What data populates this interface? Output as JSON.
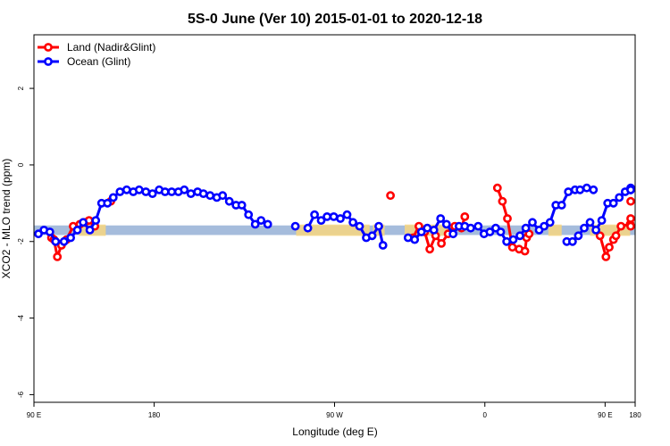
{
  "chart_data": {
    "type": "line",
    "title": "5S-0 June (Ver 10)   2015-01-01 to 2020-12-18",
    "xlabel": "Longitude (deg E)",
    "ylabel": "XCO2 - MLO trend (ppm)",
    "xlim": [
      90,
      450
    ],
    "ylim": [
      -6.2,
      3.4
    ],
    "xticks": [
      {
        "value": 90,
        "label": "90 E"
      },
      {
        "value": 162,
        "label": "180"
      },
      {
        "value": 270,
        "label": "90 W"
      },
      {
        "value": 360,
        "label": "0"
      },
      {
        "value": 432,
        "label": "90 E"
      },
      {
        "value": 450,
        "label": "180"
      }
    ],
    "yticks": [
      -6,
      -4,
      -2,
      0,
      2
    ],
    "colors": {
      "land": "#ff0000",
      "ocean": "#0000ff",
      "band_blue": "#a5bcdc",
      "band_orange": "#f7d680"
    },
    "bands": {
      "blue": {
        "y_low": -1.83,
        "y_high": -1.58
      },
      "orange": [
        {
          "x_start": 117,
          "x_end": 133
        },
        {
          "x_start": 247,
          "x_end": 291
        },
        {
          "x_start": 293,
          "x_end": 300
        },
        {
          "x_start": 312,
          "x_end": 342
        },
        {
          "x_start": 398,
          "x_end": 406
        },
        {
          "x_start": 423,
          "x_end": 447
        }
      ]
    },
    "legend": {
      "position": "top-left"
    },
    "series": [
      {
        "name": "Land (Nadir&Glint)",
        "color_key": "land",
        "segments": [
          [
            [
              100.5,
              -1.9
            ],
            [
              102,
              -1.95
            ],
            [
              104,
              -2.4
            ],
            [
              106.5,
              -2.1
            ],
            [
              109.5,
              -1.95
            ],
            [
              113.5,
              -1.6
            ],
            [
              117.5,
              -1.55
            ],
            [
              120.5,
              -1.5
            ],
            [
              123,
              -1.45
            ],
            [
              126.5,
              -1.6
            ]
          ],
          [
            [
              136,
              -0.95
            ]
          ],
          [
            [
              303.5,
              -0.8
            ]
          ],
          [
            [
              317,
              -1.9
            ],
            [
              320.5,
              -1.6
            ],
            [
              324,
              -1.75
            ],
            [
              327,
              -2.2
            ],
            [
              330.5,
              -1.85
            ],
            [
              334,
              -2.05
            ],
            [
              338,
              -1.8
            ],
            [
              342,
              -1.6
            ],
            [
              346,
              -1.65
            ],
            [
              348,
              -1.35
            ]
          ],
          [
            [
              367.5,
              -0.6
            ],
            [
              370.5,
              -0.95
            ],
            [
              373.5,
              -1.4
            ],
            [
              376.5,
              -2.15
            ],
            [
              380.5,
              -2.2
            ],
            [
              384,
              -2.25
            ],
            [
              385,
              -1.9
            ],
            [
              386.5,
              -1.8
            ]
          ],
          [
            [
              429,
              -1.85
            ],
            [
              432.5,
              -2.4
            ],
            [
              434.5,
              -2.15
            ],
            [
              437,
              -1.95
            ],
            [
              438.5,
              -1.85
            ],
            [
              441.5,
              -1.6
            ],
            [
              447,
              -1.55
            ],
            [
              449.5,
              -1.4
            ],
            [
              452.5,
              -1.6
            ]
          ],
          [
            [
              466,
              -0.95
            ]
          ]
        ]
      },
      {
        "name": "Ocean (Glint)",
        "color_key": "ocean",
        "segments": [
          [
            [
              92,
              -1.8
            ],
            [
              96,
              -1.7
            ],
            [
              99.5,
              -1.75
            ],
            [
              103,
              -2.0
            ],
            [
              108,
              -2.0
            ],
            [
              112,
              -1.9
            ],
            [
              116,
              -1.7
            ],
            [
              119.5,
              -1.5
            ],
            [
              123.5,
              -1.7
            ],
            [
              127,
              -1.45
            ],
            [
              130.5,
              -1.0
            ],
            [
              134,
              -1.0
            ],
            [
              137.5,
              -0.85
            ],
            [
              141.5,
              -0.7
            ],
            [
              145.5,
              -0.65
            ],
            [
              149.5,
              -0.7
            ],
            [
              153,
              -0.65
            ],
            [
              157,
              -0.7
            ],
            [
              161,
              -0.75
            ],
            [
              165,
              -0.65
            ],
            [
              168.5,
              -0.7
            ],
            [
              172.5,
              -0.7
            ],
            [
              176.5,
              -0.7
            ],
            [
              180,
              -0.65
            ],
            [
              184,
              -0.75
            ],
            [
              188,
              -0.7
            ],
            [
              191.5,
              -0.75
            ],
            [
              195.5,
              -0.8
            ],
            [
              199.5,
              -0.85
            ],
            [
              203,
              -0.8
            ],
            [
              207,
              -0.95
            ],
            [
              211,
              -1.05
            ],
            [
              214.5,
              -1.05
            ],
            [
              218.5,
              -1.3
            ],
            [
              222.5,
              -1.55
            ],
            [
              226,
              -1.45
            ],
            [
              230,
              -1.55
            ]
          ],
          [
            [
              246.5,
              -1.6
            ]
          ],
          [
            [
              254,
              -1.65
            ],
            [
              258,
              -1.3
            ],
            [
              262,
              -1.45
            ],
            [
              265.5,
              -1.35
            ],
            [
              269.5,
              -1.35
            ],
            [
              273.5,
              -1.4
            ],
            [
              277.5,
              -1.3
            ],
            [
              281,
              -1.5
            ],
            [
              285,
              -1.6
            ],
            [
              289,
              -1.9
            ],
            [
              292.5,
              -1.85
            ],
            [
              296.5,
              -1.6
            ],
            [
              299,
              -2.1
            ]
          ],
          [
            [
              314,
              -1.9
            ],
            [
              318,
              -1.95
            ],
            [
              322,
              -1.75
            ],
            [
              325.5,
              -1.65
            ],
            [
              329.5,
              -1.7
            ],
            [
              333.5,
              -1.4
            ],
            [
              337,
              -1.55
            ],
            [
              341,
              -1.8
            ],
            [
              344.5,
              -1.6
            ],
            [
              348,
              -1.6
            ],
            [
              351.5,
              -1.65
            ],
            [
              356,
              -1.6
            ],
            [
              359.5,
              -1.8
            ],
            [
              363,
              -1.75
            ],
            [
              366.5,
              -1.65
            ],
            [
              369.5,
              -1.75
            ],
            [
              373,
              -2.0
            ],
            [
              377,
              -1.95
            ],
            [
              381,
              -1.85
            ],
            [
              384.5,
              -1.65
            ],
            [
              388.5,
              -1.5
            ],
            [
              392.5,
              -1.7
            ],
            [
              395.5,
              -1.6
            ],
            [
              399,
              -1.5
            ],
            [
              402.5,
              -1.05
            ],
            [
              406,
              -1.05
            ],
            [
              410,
              -0.7
            ],
            [
              414,
              -0.65
            ],
            [
              417,
              -0.65
            ],
            [
              421,
              -0.6
            ],
            [
              425,
              -0.65
            ]
          ],
          [
            [
              409,
              -2.0
            ],
            [
              412.5,
              -2.0
            ],
            [
              416,
              -1.85
            ],
            [
              419.5,
              -1.65
            ],
            [
              423,
              -1.5
            ],
            [
              426.5,
              -1.7
            ],
            [
              430,
              -1.45
            ],
            [
              433.5,
              -1.0
            ],
            [
              437,
              -1.0
            ],
            [
              440.5,
              -0.85
            ],
            [
              444,
              -0.7
            ],
            [
              447.5,
              -0.65
            ],
            [
              451,
              -0.65
            ],
            [
              454.5,
              -0.6
            ],
            [
              458,
              -0.65
            ]
          ]
        ]
      }
    ]
  }
}
